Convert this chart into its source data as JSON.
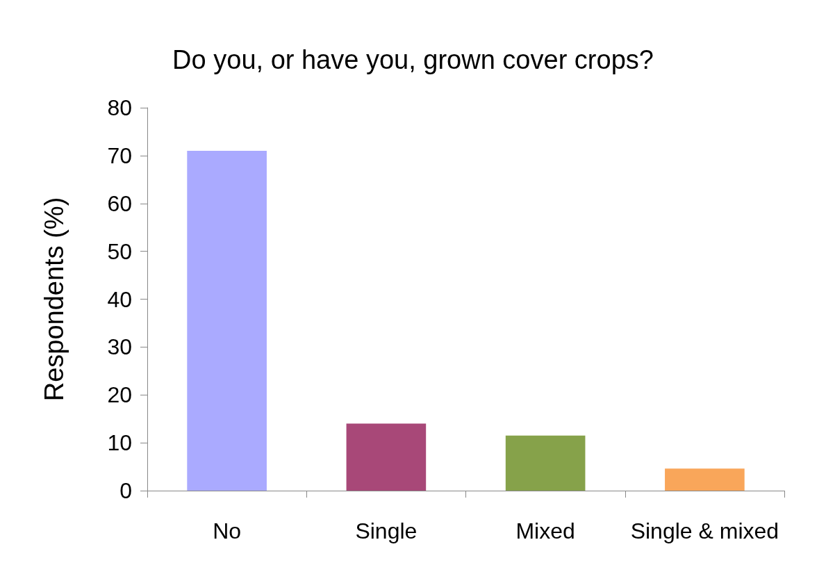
{
  "chart_data": {
    "type": "bar",
    "title": "Do you, or have you, grown cover crops?",
    "ylabel": "Respondents (%)",
    "categories": [
      "No",
      "Single",
      "Mixed",
      "Single & mixed"
    ],
    "values": [
      71,
      14,
      11.5,
      4.6
    ],
    "colors": [
      "#aaaaff",
      "#a84878",
      "#86a24a",
      "#f9a65a"
    ],
    "ylim": [
      0,
      80
    ],
    "yticks": [
      0,
      10,
      20,
      30,
      40,
      50,
      60,
      70,
      80
    ],
    "grid": false
  }
}
